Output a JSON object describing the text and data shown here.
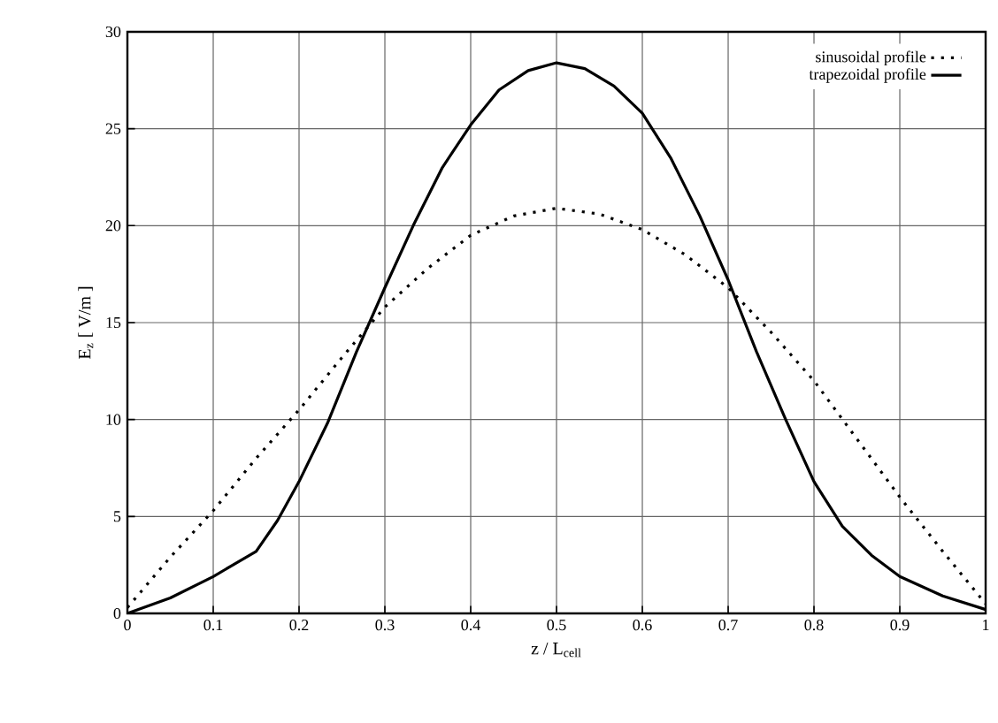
{
  "chart_data": {
    "type": "line",
    "xlabel": "z / L$_{cell}$",
    "ylabel": "E$_{z}$ [ V/m ]",
    "xlim": [
      0,
      1
    ],
    "ylim": [
      0,
      30
    ],
    "xticks": [
      0,
      0.1,
      0.2,
      0.3,
      0.4,
      0.5,
      0.6,
      0.7,
      0.8,
      0.9,
      1
    ],
    "yticks": [
      0,
      5,
      10,
      15,
      20,
      25,
      30
    ],
    "grid": true,
    "legend": "top right",
    "series": [
      {
        "name": "sinusoidal profile",
        "color": "#000000",
        "line_style": "dotted",
        "x": [
          0,
          0.05,
          0.1,
          0.15,
          0.2,
          0.25,
          0.3,
          0.35,
          0.4,
          0.45,
          0.5,
          0.55,
          0.6,
          0.65,
          0.7,
          0.75,
          0.8,
          0.85,
          0.9,
          0.95,
          1
        ],
        "values": [
          0.3,
          2.9,
          5.3,
          8.0,
          10.5,
          13.2,
          15.8,
          17.8,
          19.5,
          20.5,
          20.9,
          20.6,
          19.8,
          18.5,
          16.8,
          14.5,
          12.0,
          9.0,
          6.0,
          3.2,
          0.5
        ]
      },
      {
        "name": "trapezoidal profile",
        "color": "#000000",
        "line_style": "solid",
        "x": [
          0,
          0.05,
          0.1,
          0.15,
          0.175,
          0.2,
          0.233,
          0.267,
          0.3,
          0.333,
          0.367,
          0.4,
          0.433,
          0.467,
          0.5,
          0.533,
          0.567,
          0.6,
          0.633,
          0.667,
          0.7,
          0.733,
          0.767,
          0.8,
          0.833,
          0.867,
          0.9,
          0.95,
          1
        ],
        "values": [
          0,
          0.8,
          1.9,
          3.2,
          4.8,
          6.8,
          9.8,
          13.5,
          16.8,
          20.0,
          23.0,
          25.2,
          27.0,
          28.0,
          28.4,
          28.1,
          27.2,
          25.8,
          23.5,
          20.5,
          17.2,
          13.5,
          10.0,
          6.8,
          4.5,
          3.0,
          1.9,
          0.9,
          0.2
        ]
      }
    ]
  }
}
